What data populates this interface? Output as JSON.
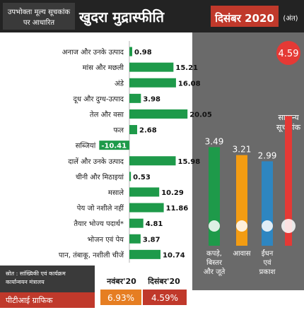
{
  "header": {
    "left_line1": "उपभोक्ता मूल्य सूचकांक",
    "left_line2": "पर आधारित",
    "title": "खुदरा मुद्रास्फीति",
    "month": "दिसंबर 2020",
    "unit": "(अंत)"
  },
  "colors": {
    "header_bg": "#232323",
    "month_bg": "#c0392b",
    "bar": "#1e9a4a",
    "bar_neg": "#1e9a4a",
    "right_panel_bg": "#6a6a6a",
    "footer_bg": "#3a3a3a",
    "nov_color": "#e67e22",
    "dec_color": "#c0392b"
  },
  "chart_data": [
    {
      "type": "bar",
      "orientation": "horizontal",
      "categories": [
        "अनाज और उनके उत्पाद",
        "मांस और मछली",
        "अंडे",
        "दूध और दुग्ध-उत्पाद",
        "तेल और वसा",
        "फल",
        "सब्जियां",
        "दालें और उनके उत्पाद",
        "चीनी और मिठाइयां",
        "मसाले",
        "पेय जो नशीले नहीं",
        "तैयार भोज्य पदार्थ*",
        "भोजन एवं पेय",
        "पान, तंबाकू, नशीली चीजें"
      ],
      "values": [
        0.98,
        15.21,
        16.08,
        3.98,
        20.05,
        2.68,
        -10.41,
        15.98,
        0.53,
        10.29,
        11.86,
        4.81,
        3.87,
        10.74
      ],
      "labels": [
        "0.98",
        "15.21",
        "16.08",
        "3.98",
        "20.05",
        "2.68",
        "-10.41",
        "15.98",
        "0.53",
        "10.29",
        "11.86",
        "4.81",
        "3.87",
        "10.74"
      ]
    },
    {
      "type": "bar",
      "orientation": "vertical",
      "categories": [
        "कपड़े, बिस्तर और जूते",
        "आवास",
        "ईंधन एवं प्रकाश",
        "सामान्य सूचकांक"
      ],
      "values": [
        3.49,
        3.21,
        2.99,
        4.59
      ],
      "labels": [
        "3.49",
        "3.21",
        "2.99",
        "4.59"
      ],
      "colors": [
        "#1e9a4a",
        "#f39c12",
        "#2e86c1",
        "#e53935"
      ]
    }
  ],
  "right_panel": {
    "general_label_line1": "सामान्य",
    "general_label_line2": "सूचकांक",
    "group_labels": [
      [
        "कपड़े,",
        "बिस्तर",
        "और जूते"
      ],
      [
        "आवास"
      ],
      [
        "ईंधन",
        "एवं",
        "प्रकाश"
      ]
    ]
  },
  "footer": {
    "source_line1": "स्रोत : सांख्यिकी एवं कार्यक्रम",
    "source_line2": "कार्यान्वयन मंत्रालय",
    "credit": "पीटीआई ग्राफिक",
    "nov_label": "नवंबर'20",
    "dec_label": "दिसंबर'20",
    "nov_value": "6.93%",
    "dec_value": "4.59%"
  }
}
